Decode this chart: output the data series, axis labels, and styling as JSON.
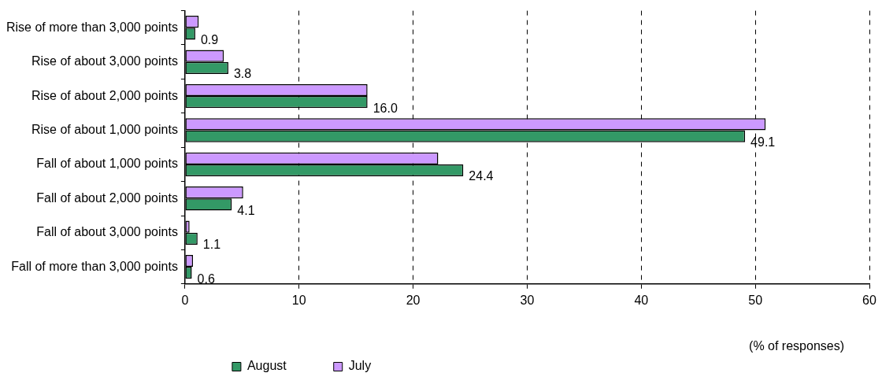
{
  "chart_data": {
    "type": "bar",
    "orientation": "horizontal",
    "xlabel": "(% of responses)",
    "categories": [
      "Rise of more than 3,000 points",
      "Rise of about 3,000 points",
      "Rise of about 2,000 points",
      "Rise of about 1,000 points",
      "Fall of about 1,000 points",
      "Fall of about 2,000 points",
      "Fall of about 3,000 points",
      "Fall of more than 3,000 points"
    ],
    "series": [
      {
        "name": "July",
        "color": "#cc99ff",
        "values": [
          1.2,
          3.4,
          16.0,
          50.9,
          22.2,
          5.1,
          0.4,
          0.7
        ]
      },
      {
        "name": "August",
        "color": "#339966",
        "values": [
          0.9,
          3.8,
          16.0,
          49.1,
          24.4,
          4.1,
          1.1,
          0.6
        ],
        "value_labels": [
          "0.9",
          "3.8",
          "16.0",
          "49.1",
          "24.4",
          "4.1",
          "1.1",
          "0.6"
        ]
      }
    ],
    "xlim": [
      0,
      60
    ],
    "xticks": [
      0,
      10,
      20,
      30,
      40,
      50,
      60
    ],
    "grid": "x",
    "legend": "bottom"
  }
}
